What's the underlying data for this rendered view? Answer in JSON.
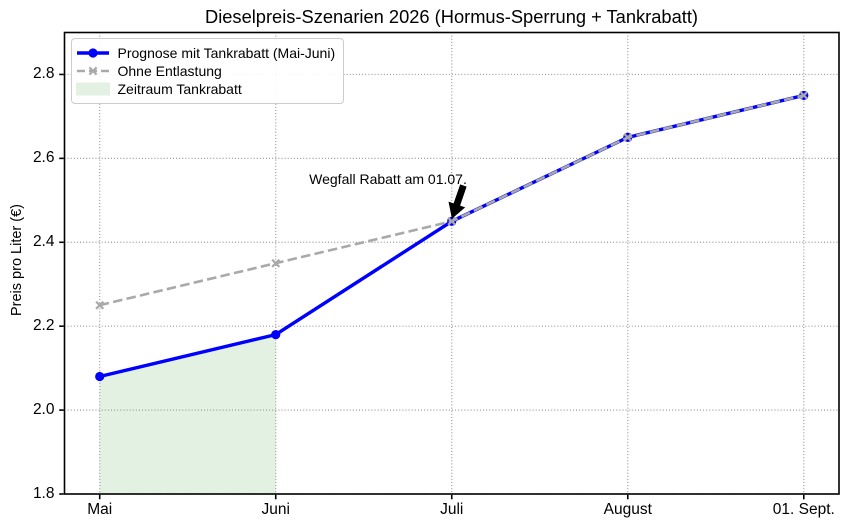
{
  "chart_data": {
    "type": "line",
    "title": "Dieselpreis-Szenarien 2026 (Hormus-Sperrung + Tankrabatt)",
    "xlabel": "",
    "ylabel": "Preis pro Liter (€)",
    "categories": [
      "Mai",
      "Juni",
      "Juli",
      "August",
      "01. Sept."
    ],
    "series": [
      {
        "name": "Prognose mit Tankrabatt (Mai-Juni)",
        "values": [
          2.08,
          2.18,
          2.45,
          2.65,
          2.75
        ],
        "color": "#0000ff",
        "linestyle": "solid",
        "marker": "circle"
      },
      {
        "name": "Ohne Entlastung",
        "values": [
          2.25,
          2.35,
          2.45,
          2.65,
          2.75
        ],
        "color": "#a9a9a9",
        "linestyle": "dashed",
        "marker": "x"
      }
    ],
    "fill_region": {
      "label": "Zeitraum Tankrabatt",
      "from_category": "Mai",
      "to_category": "Juni",
      "baseline": 1.8,
      "color": "#008000",
      "alpha": 0.11
    },
    "annotation": {
      "text": "Wegfall Rabatt am 01.07.",
      "target_category": "Juli",
      "target_value": 2.45,
      "arrow_color": "#000000"
    },
    "ylim": [
      1.8,
      2.9
    ],
    "yticks": [
      "1.8",
      "2.0",
      "2.2",
      "2.4",
      "2.6",
      "2.8"
    ],
    "grid": "dotted",
    "legend_position": "upper left"
  }
}
